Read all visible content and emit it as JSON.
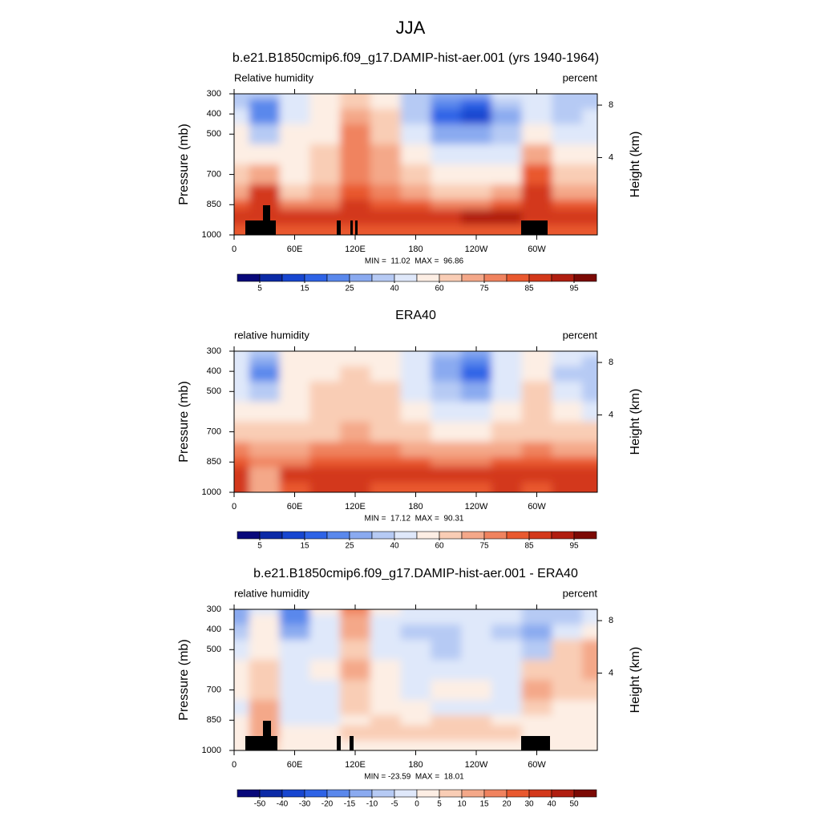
{
  "figure_title": "JJA",
  "chart_data": [
    {
      "type": "contour",
      "title": "b.e21.B1850cmip6.f09_g17.DAMIP-hist-aer.001 (yrs 1940-1964)",
      "left_label": "Relative humidity",
      "right_label": "percent",
      "y_label": "Pressure (mb)",
      "y2_label": "Height (km)",
      "stats": "MIN =  11.02  MAX =  96.86",
      "xlim": [
        0,
        360
      ],
      "xticks": [
        0,
        {
          "value": 60,
          "label": "60E"
        },
        {
          "value": 120,
          "label": "120E"
        },
        180,
        {
          "value": 240,
          "label": "120W"
        },
        {
          "value": 300,
          "label": "60W"
        }
      ],
      "ylim": [
        1000,
        300
      ],
      "yticks": [
        300,
        400,
        500,
        700,
        850,
        1000
      ],
      "y2ticks": [
        4,
        8
      ],
      "x": [
        0,
        30,
        60,
        90,
        120,
        150,
        180,
        210,
        240,
        270,
        300,
        330,
        360
      ],
      "y": [
        300,
        350,
        400,
        500,
        600,
        700,
        800,
        850,
        900,
        1000
      ],
      "values": [
        [
          35,
          30,
          45,
          55,
          65,
          55,
          35,
          25,
          25,
          40,
          40,
          30,
          35
        ],
        [
          38,
          22,
          45,
          55,
          68,
          58,
          32,
          20,
          18,
          32,
          42,
          30,
          38
        ],
        [
          40,
          20,
          45,
          55,
          70,
          60,
          30,
          15,
          12,
          25,
          45,
          30,
          40
        ],
        [
          50,
          35,
          50,
          58,
          75,
          65,
          40,
          25,
          25,
          35,
          55,
          40,
          45
        ],
        [
          55,
          50,
          55,
          62,
          78,
          70,
          50,
          40,
          40,
          45,
          70,
          55,
          55
        ],
        [
          62,
          72,
          58,
          62,
          78,
          72,
          60,
          55,
          55,
          58,
          80,
          62,
          62
        ],
        [
          72,
          85,
          65,
          70,
          82,
          75,
          72,
          68,
          68,
          72,
          85,
          70,
          72
        ],
        [
          80,
          88,
          75,
          78,
          85,
          82,
          80,
          78,
          78,
          80,
          88,
          80,
          80
        ],
        [
          88,
          85,
          88,
          88,
          88,
          88,
          88,
          88,
          90,
          90,
          85,
          88,
          88
        ],
        [
          82,
          80,
          82,
          80,
          82,
          80,
          80,
          80,
          82,
          80,
          80,
          80,
          82
        ]
      ],
      "colorbar": {
        "levels": [
          5,
          10,
          15,
          20,
          25,
          30,
          40,
          50,
          60,
          70,
          75,
          80,
          85,
          90,
          95
        ],
        "ticks": [
          5,
          15,
          25,
          40,
          60,
          75,
          85,
          95
        ],
        "colors": [
          "#08087a",
          "#0b2aa6",
          "#1746d0",
          "#2e63e6",
          "#5a88ec",
          "#8aaaf0",
          "#b6caf4",
          "#dfe8fa",
          "#fdeee4",
          "#f9cdb5",
          "#f4a889",
          "#f0835f",
          "#e9592f",
          "#d3381a",
          "#b01e10",
          "#7c0a05"
        ]
      }
    },
    {
      "type": "contour",
      "title": "ERA40",
      "left_label": "relative humidity",
      "right_label": "percent",
      "y_label": "Pressure (mb)",
      "y2_label": "Height (km)",
      "stats": "MIN =  17.12  MAX =  90.31",
      "xlim": [
        0,
        360
      ],
      "xticks": [
        0,
        {
          "value": 60,
          "label": "60E"
        },
        {
          "value": 120,
          "label": "120E"
        },
        180,
        {
          "value": 240,
          "label": "120W"
        },
        {
          "value": 300,
          "label": "60W"
        }
      ],
      "ylim": [
        1000,
        300
      ],
      "yticks": [
        300,
        400,
        500,
        700,
        850,
        1000
      ],
      "y2ticks": [
        4,
        8
      ],
      "x": [
        0,
        30,
        60,
        90,
        120,
        150,
        180,
        210,
        240,
        270,
        300,
        330,
        360
      ],
      "y": [
        300,
        350,
        400,
        500,
        600,
        700,
        800,
        850,
        900,
        1000
      ],
      "values": [
        [
          42,
          35,
          58,
          58,
          58,
          55,
          40,
          30,
          28,
          45,
          50,
          40,
          42
        ],
        [
          42,
          28,
          57,
          58,
          59,
          57,
          40,
          28,
          22,
          42,
          52,
          40,
          38
        ],
        [
          42,
          22,
          55,
          58,
          60,
          58,
          40,
          25,
          18,
          40,
          55,
          38,
          35
        ],
        [
          48,
          35,
          55,
          60,
          65,
          60,
          48,
          35,
          28,
          45,
          60,
          40,
          32
        ],
        [
          55,
          50,
          58,
          62,
          68,
          62,
          55,
          45,
          42,
          50,
          62,
          50,
          45
        ],
        [
          65,
          65,
          60,
          65,
          70,
          65,
          60,
          55,
          55,
          60,
          68,
          60,
          60
        ],
        [
          75,
          72,
          70,
          75,
          78,
          75,
          72,
          70,
          70,
          72,
          78,
          72,
          72
        ],
        [
          80,
          75,
          78,
          80,
          82,
          80,
          80,
          78,
          78,
          80,
          82,
          80,
          80
        ],
        [
          85,
          72,
          85,
          85,
          85,
          85,
          85,
          85,
          85,
          87,
          85,
          85,
          85
        ],
        [
          85,
          70,
          82,
          85,
          85,
          82,
          82,
          83,
          83,
          87,
          80,
          85,
          85
        ]
      ],
      "colorbar": {
        "levels": [
          5,
          10,
          15,
          20,
          25,
          30,
          40,
          50,
          60,
          70,
          75,
          80,
          85,
          90,
          95
        ],
        "ticks": [
          5,
          15,
          25,
          40,
          60,
          75,
          85,
          95
        ],
        "colors": [
          "#08087a",
          "#0b2aa6",
          "#1746d0",
          "#2e63e6",
          "#5a88ec",
          "#8aaaf0",
          "#b6caf4",
          "#dfe8fa",
          "#fdeee4",
          "#f9cdb5",
          "#f4a889",
          "#f0835f",
          "#e9592f",
          "#d3381a",
          "#b01e10",
          "#7c0a05"
        ]
      }
    },
    {
      "type": "contour",
      "title": "b.e21.B1850cmip6.f09_g17.DAMIP-hist-aer.001 - ERA40",
      "left_label": "relative humidity",
      "right_label": "percent",
      "y_label": "Pressure (mb)",
      "y2_label": "Height (km)",
      "stats": "MIN = -23.59  MAX =  18.01",
      "xlim": [
        0,
        360
      ],
      "xticks": [
        0,
        {
          "value": 60,
          "label": "60E"
        },
        {
          "value": 120,
          "label": "120E"
        },
        180,
        {
          "value": 240,
          "label": "120W"
        },
        {
          "value": 300,
          "label": "60W"
        }
      ],
      "ylim": [
        1000,
        300
      ],
      "yticks": [
        300,
        400,
        500,
        700,
        850,
        1000
      ],
      "y2ticks": [
        4,
        8
      ],
      "x": [
        0,
        30,
        60,
        90,
        120,
        150,
        180,
        210,
        240,
        270,
        300,
        330,
        360
      ],
      "y": [
        300,
        350,
        400,
        500,
        600,
        700,
        800,
        850,
        900,
        1000
      ],
      "values": [
        [
          -15,
          -5,
          -20,
          0,
          15,
          0,
          -5,
          -5,
          -5,
          -5,
          -10,
          -10,
          -5
        ],
        [
          -12,
          0,
          -20,
          -3,
          12,
          -2,
          -5,
          -5,
          -5,
          -5,
          -10,
          -8,
          -3
        ],
        [
          -8,
          0,
          -15,
          -5,
          10,
          -5,
          -8,
          -8,
          -5,
          -10,
          -12,
          -5,
          0
        ],
        [
          -5,
          3,
          -5,
          -3,
          8,
          -3,
          -5,
          -8,
          -5,
          -5,
          -8,
          5,
          10
        ],
        [
          0,
          5,
          -3,
          0,
          10,
          0,
          -3,
          -3,
          -3,
          -3,
          5,
          8,
          10
        ],
        [
          0,
          8,
          -3,
          -3,
          5,
          3,
          -3,
          0,
          0,
          -3,
          10,
          5,
          5
        ],
        [
          -3,
          10,
          -5,
          -5,
          5,
          3,
          0,
          -3,
          -3,
          -3,
          5,
          0,
          0
        ],
        [
          0,
          10,
          -5,
          -3,
          3,
          5,
          3,
          5,
          5,
          3,
          3,
          0,
          0
        ],
        [
          3,
          12,
          3,
          3,
          5,
          5,
          5,
          8,
          8,
          5,
          3,
          3,
          3
        ],
        [
          0,
          5,
          0,
          0,
          0,
          0,
          0,
          0,
          0,
          0,
          0,
          0,
          0
        ]
      ],
      "colorbar": {
        "levels": [
          -50,
          -40,
          -30,
          -20,
          -15,
          -10,
          -5,
          0,
          5,
          10,
          15,
          20,
          30,
          40,
          50
        ],
        "ticks": [
          -50,
          -40,
          -30,
          -20,
          -15,
          -10,
          -5,
          0,
          5,
          10,
          15,
          20,
          30,
          40,
          50
        ],
        "colors": [
          "#08087a",
          "#0b2aa6",
          "#1746d0",
          "#2e63e6",
          "#5a88ec",
          "#8aaaf0",
          "#b6caf4",
          "#dfe8fa",
          "#fdeee4",
          "#f9cdb5",
          "#f4a889",
          "#f0835f",
          "#e9592f",
          "#d3381a",
          "#b01e10",
          "#7c0a05"
        ]
      }
    }
  ]
}
